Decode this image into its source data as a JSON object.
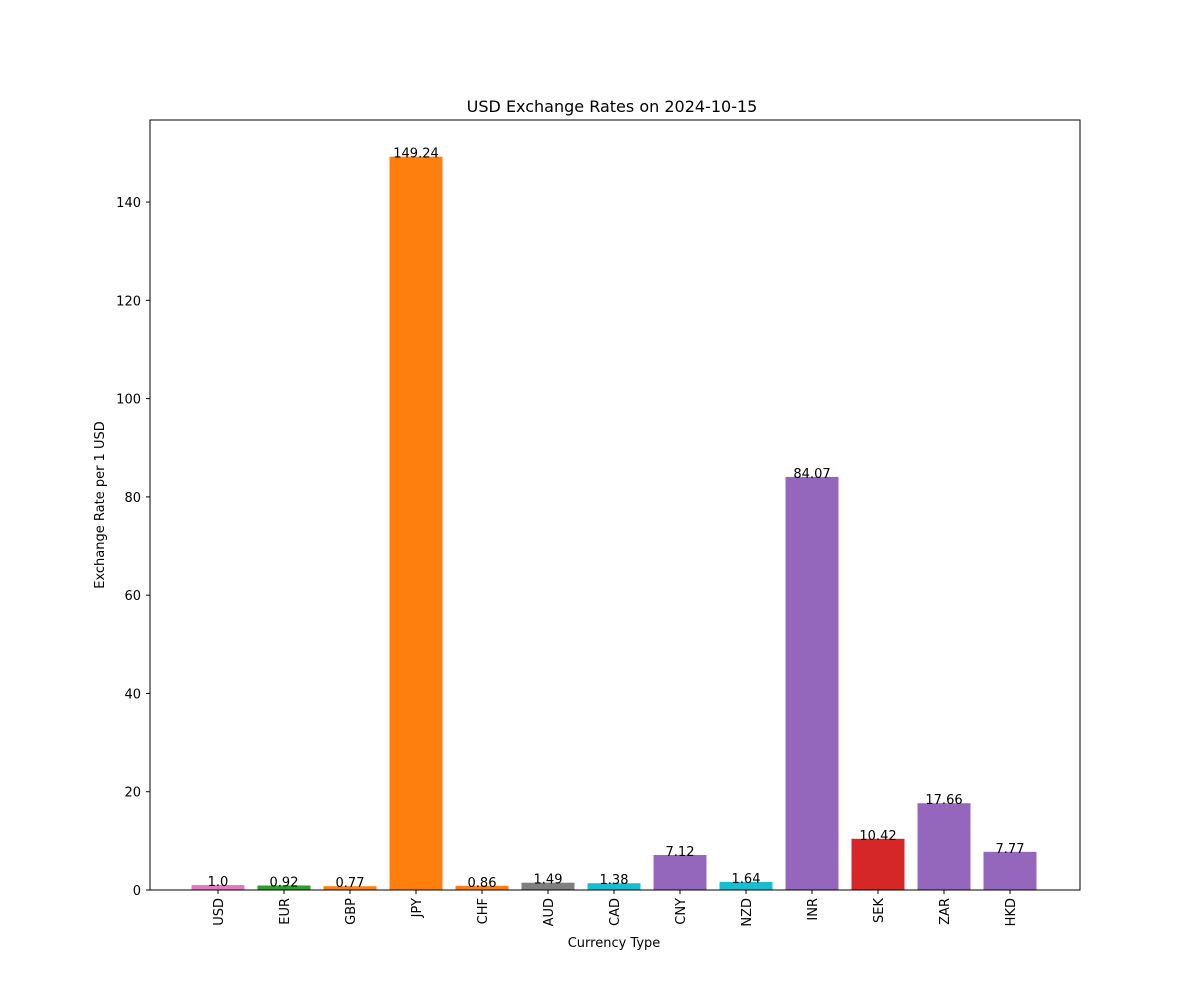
{
  "chart_data": {
    "type": "bar",
    "title": "USD Exchange Rates on 2024-10-15",
    "xlabel": "Currency Type",
    "ylabel": "Exchange Rate per 1 USD",
    "ylim": [
      0,
      156.7
    ],
    "yticks": [
      0,
      20,
      40,
      60,
      80,
      100,
      120,
      140
    ],
    "categories": [
      "USD",
      "EUR",
      "GBP",
      "JPY",
      "CHF",
      "AUD",
      "CAD",
      "CNY",
      "NZD",
      "INR",
      "SEK",
      "ZAR",
      "HKD"
    ],
    "values": [
      1.0,
      0.92,
      0.77,
      149.24,
      0.86,
      1.49,
      1.38,
      7.12,
      1.64,
      84.07,
      10.42,
      17.66,
      7.77
    ],
    "value_labels": [
      "1.0",
      "0.92",
      "0.77",
      "149.24",
      "0.86",
      "1.49",
      "1.38",
      "7.12",
      "1.64",
      "84.07",
      "10.42",
      "17.66",
      "7.77"
    ],
    "colors": [
      "#e377c2",
      "#2ca02c",
      "#ff7f0e",
      "#ff7f0e",
      "#ff7f0e",
      "#7f7f7f",
      "#17becf",
      "#9467bd",
      "#17becf",
      "#9467bd",
      "#d62728",
      "#9467bd",
      "#9467bd"
    ],
    "grid": false,
    "legend": "none"
  }
}
